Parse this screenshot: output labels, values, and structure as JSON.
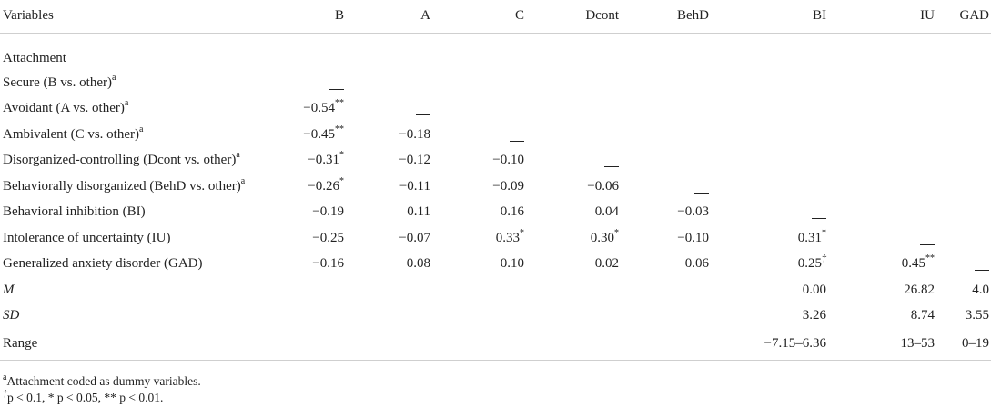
{
  "headers": [
    "Variables",
    "B",
    "A",
    "C",
    "Dcont",
    "BehD",
    "BI",
    "IU",
    "GAD"
  ],
  "section_label": "Attachment",
  "rows": [
    {
      "label": "Secure (B vs. other)",
      "sup": "a",
      "cells": [
        "—",
        "",
        "",
        "",
        "",
        "",
        "",
        ""
      ],
      "cell_sups": [
        "",
        "",
        "",
        "",
        "",
        "",
        "",
        ""
      ]
    },
    {
      "label": "Avoidant (A vs. other)",
      "sup": "a",
      "cells": [
        "−0.54",
        "—",
        "",
        "",
        "",
        "",
        "",
        ""
      ],
      "cell_sups": [
        "**",
        "",
        "",
        "",
        "",
        "",
        "",
        ""
      ]
    },
    {
      "label": "Ambivalent (C vs. other)",
      "sup": "a",
      "cells": [
        "−0.45",
        "−0.18",
        "—",
        "",
        "",
        "",
        "",
        ""
      ],
      "cell_sups": [
        "**",
        "",
        "",
        "",
        "",
        "",
        "",
        ""
      ]
    },
    {
      "label": "Disorganized-controlling (Dcont vs. other)",
      "sup": "a",
      "cells": [
        "−0.31",
        "−0.12",
        "−0.10",
        "—",
        "",
        "",
        "",
        ""
      ],
      "cell_sups": [
        "*",
        "",
        "",
        "",
        "",
        "",
        "",
        ""
      ]
    },
    {
      "label": "Behaviorally disorganized (BehD vs. other)",
      "sup": "a",
      "cells": [
        "−0.26",
        "−0.11",
        "−0.09",
        "−0.06",
        "—",
        "",
        "",
        ""
      ],
      "cell_sups": [
        "*",
        "",
        "",
        "",
        "",
        "",
        "",
        ""
      ]
    },
    {
      "label": "Behavioral inhibition (BI)",
      "sup": "",
      "cells": [
        "−0.19",
        "0.11",
        "0.16",
        "0.04",
        "−0.03",
        "—",
        "",
        ""
      ],
      "cell_sups": [
        "",
        "",
        "",
        "",
        "",
        "",
        "",
        ""
      ]
    },
    {
      "label": "Intolerance of uncertainty (IU)",
      "sup": "",
      "cells": [
        "−0.25",
        "−0.07",
        "0.33",
        "0.30",
        "−0.10",
        "0.31",
        "—",
        ""
      ],
      "cell_sups": [
        "",
        "",
        "*",
        "*",
        "",
        "*",
        "",
        ""
      ]
    },
    {
      "label": "Generalized anxiety disorder (GAD)",
      "sup": "",
      "cells": [
        "−0.16",
        "0.08",
        "0.10",
        "0.02",
        "0.06",
        "0.25",
        "0.45",
        "—"
      ],
      "cell_sups": [
        "",
        "",
        "",
        "",
        "",
        "†",
        "**",
        ""
      ]
    },
    {
      "label": "M",
      "italic": true,
      "sup": "",
      "cells": [
        "",
        "",
        "",
        "",
        "",
        "0.00",
        "26.82",
        "4.0"
      ],
      "cell_sups": [
        "",
        "",
        "",
        "",
        "",
        "",
        "",
        ""
      ]
    },
    {
      "label": "SD",
      "italic": true,
      "sup": "",
      "cells": [
        "",
        "",
        "",
        "",
        "",
        "3.26",
        "8.74",
        "3.55"
      ],
      "cell_sups": [
        "",
        "",
        "",
        "",
        "",
        "",
        "",
        ""
      ]
    },
    {
      "label": "Range",
      "sup": "",
      "cells": [
        "",
        "",
        "",
        "",
        "",
        "−7.15–6.36",
        "13–53",
        "0–19"
      ],
      "cell_sups": [
        "",
        "",
        "",
        "",
        "",
        "",
        "",
        ""
      ]
    }
  ],
  "footnotes": [
    {
      "sup": "a",
      "text": "Attachment coded as dummy variables."
    },
    {
      "sup": "†",
      "text": "p < 0.1, * p < 0.05, ** p < 0.01."
    }
  ]
}
